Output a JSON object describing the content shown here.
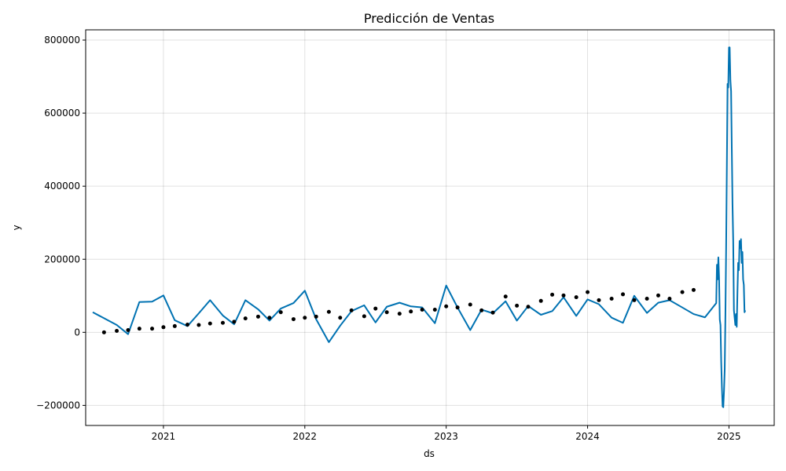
{
  "chart_data": {
    "type": "line",
    "title": "Predicción de Ventas",
    "xlabel": "ds",
    "ylabel": "y",
    "xlim": [
      2020.45,
      2025.32
    ],
    "ylim": [
      -255000,
      828000
    ],
    "grid": true,
    "x_ticks": [
      {
        "value": 2021,
        "label": "2021"
      },
      {
        "value": 2022,
        "label": "2022"
      },
      {
        "value": 2023,
        "label": "2023"
      },
      {
        "value": 2024,
        "label": "2024"
      },
      {
        "value": 2025,
        "label": "2025"
      }
    ],
    "y_ticks": [
      {
        "value": -200000,
        "label": "−200000"
      },
      {
        "value": 0,
        "label": "0"
      },
      {
        "value": 200000,
        "label": "200000"
      },
      {
        "value": 400000,
        "label": "400000"
      },
      {
        "value": 600000,
        "label": "600000"
      },
      {
        "value": 800000,
        "label": "800000"
      }
    ],
    "series": [
      {
        "kind": "line",
        "color": "#0072B2",
        "points": [
          [
            2020.5,
            55000
          ],
          [
            2020.67,
            20000
          ],
          [
            2020.75,
            -5000
          ],
          [
            2020.83,
            83000
          ],
          [
            2020.92,
            84000
          ],
          [
            2021.0,
            101000
          ],
          [
            2021.08,
            33000
          ],
          [
            2021.17,
            17000
          ],
          [
            2021.25,
            52000
          ],
          [
            2021.33,
            88000
          ],
          [
            2021.42,
            46000
          ],
          [
            2021.5,
            22000
          ],
          [
            2021.58,
            88000
          ],
          [
            2021.67,
            63000
          ],
          [
            2021.75,
            32000
          ],
          [
            2021.83,
            65000
          ],
          [
            2021.92,
            80000
          ],
          [
            2022.0,
            114000
          ],
          [
            2022.08,
            36000
          ],
          [
            2022.17,
            -27000
          ],
          [
            2022.25,
            18000
          ],
          [
            2022.33,
            58000
          ],
          [
            2022.42,
            74000
          ],
          [
            2022.5,
            27000
          ],
          [
            2022.58,
            70000
          ],
          [
            2022.67,
            81000
          ],
          [
            2022.75,
            71000
          ],
          [
            2022.83,
            68000
          ],
          [
            2022.92,
            25000
          ],
          [
            2023.0,
            128000
          ],
          [
            2023.08,
            68000
          ],
          [
            2023.17,
            6000
          ],
          [
            2023.25,
            62000
          ],
          [
            2023.33,
            52000
          ],
          [
            2023.42,
            85000
          ],
          [
            2023.5,
            32000
          ],
          [
            2023.58,
            72000
          ],
          [
            2023.67,
            48000
          ],
          [
            2023.75,
            58000
          ],
          [
            2023.83,
            96000
          ],
          [
            2023.92,
            45000
          ],
          [
            2024.0,
            90000
          ],
          [
            2024.08,
            77000
          ],
          [
            2024.17,
            40000
          ],
          [
            2024.25,
            26000
          ],
          [
            2024.33,
            100000
          ],
          [
            2024.42,
            53000
          ],
          [
            2024.5,
            81000
          ],
          [
            2024.58,
            88000
          ],
          [
            2024.67,
            68000
          ],
          [
            2024.75,
            50000
          ],
          [
            2024.83,
            41000
          ],
          [
            2024.91,
            80000
          ],
          [
            2024.915,
            185000
          ],
          [
            2024.92,
            145000
          ],
          [
            2024.925,
            205000
          ],
          [
            2024.93,
            150000
          ],
          [
            2024.935,
            35000
          ],
          [
            2024.94,
            20000
          ],
          [
            2024.945,
            -80000
          ],
          [
            2024.95,
            -150000
          ],
          [
            2024.955,
            -203000
          ],
          [
            2024.96,
            -205000
          ],
          [
            2024.965,
            -160000
          ],
          [
            2024.97,
            -100000
          ],
          [
            2024.975,
            50000
          ],
          [
            2024.98,
            230000
          ],
          [
            2024.985,
            450000
          ],
          [
            2024.99,
            680000
          ],
          [
            2024.995,
            670000
          ],
          [
            2025.0,
            780000
          ],
          [
            2025.005,
            780000
          ],
          [
            2025.01,
            690000
          ],
          [
            2025.015,
            660000
          ],
          [
            2025.02,
            500000
          ],
          [
            2025.025,
            350000
          ],
          [
            2025.03,
            250000
          ],
          [
            2025.035,
            60000
          ],
          [
            2025.04,
            40000
          ],
          [
            2025.045,
            20000
          ],
          [
            2025.05,
            50000
          ],
          [
            2025.055,
            15000
          ],
          [
            2025.06,
            110000
          ],
          [
            2025.065,
            190000
          ],
          [
            2025.07,
            170000
          ],
          [
            2025.075,
            250000
          ],
          [
            2025.08,
            230000
          ],
          [
            2025.085,
            255000
          ],
          [
            2025.09,
            190000
          ],
          [
            2025.095,
            220000
          ],
          [
            2025.1,
            145000
          ],
          [
            2025.105,
            130000
          ],
          [
            2025.11,
            55000
          ],
          [
            2025.115,
            60000
          ]
        ]
      },
      {
        "kind": "scatter",
        "color": "#000000",
        "points": [
          [
            2020.58,
            0
          ],
          [
            2020.67,
            4000
          ],
          [
            2020.75,
            6000
          ],
          [
            2020.83,
            10000
          ],
          [
            2020.92,
            10000
          ],
          [
            2021.0,
            14000
          ],
          [
            2021.08,
            17000
          ],
          [
            2021.17,
            21000
          ],
          [
            2021.25,
            20000
          ],
          [
            2021.33,
            24000
          ],
          [
            2021.42,
            26000
          ],
          [
            2021.5,
            29000
          ],
          [
            2021.58,
            38000
          ],
          [
            2021.67,
            43000
          ],
          [
            2021.75,
            40000
          ],
          [
            2021.83,
            55000
          ],
          [
            2021.92,
            36000
          ],
          [
            2022.0,
            40000
          ],
          [
            2022.08,
            43000
          ],
          [
            2022.17,
            56000
          ],
          [
            2022.25,
            40000
          ],
          [
            2022.33,
            60000
          ],
          [
            2022.42,
            44000
          ],
          [
            2022.5,
            65000
          ],
          [
            2022.58,
            55000
          ],
          [
            2022.67,
            51000
          ],
          [
            2022.75,
            57000
          ],
          [
            2022.83,
            62000
          ],
          [
            2022.92,
            62000
          ],
          [
            2023.0,
            71000
          ],
          [
            2023.08,
            68000
          ],
          [
            2023.17,
            76000
          ],
          [
            2023.25,
            60000
          ],
          [
            2023.33,
            54000
          ],
          [
            2023.42,
            98000
          ],
          [
            2023.5,
            73000
          ],
          [
            2023.58,
            70000
          ],
          [
            2023.67,
            86000
          ],
          [
            2023.75,
            103000
          ],
          [
            2023.83,
            101000
          ],
          [
            2023.92,
            96000
          ],
          [
            2024.0,
            110000
          ],
          [
            2024.08,
            88000
          ],
          [
            2024.17,
            92000
          ],
          [
            2024.25,
            104000
          ],
          [
            2024.33,
            88000
          ],
          [
            2024.42,
            92000
          ],
          [
            2024.5,
            101000
          ],
          [
            2024.58,
            92000
          ],
          [
            2024.67,
            110000
          ],
          [
            2024.75,
            116000
          ]
        ]
      }
    ]
  }
}
